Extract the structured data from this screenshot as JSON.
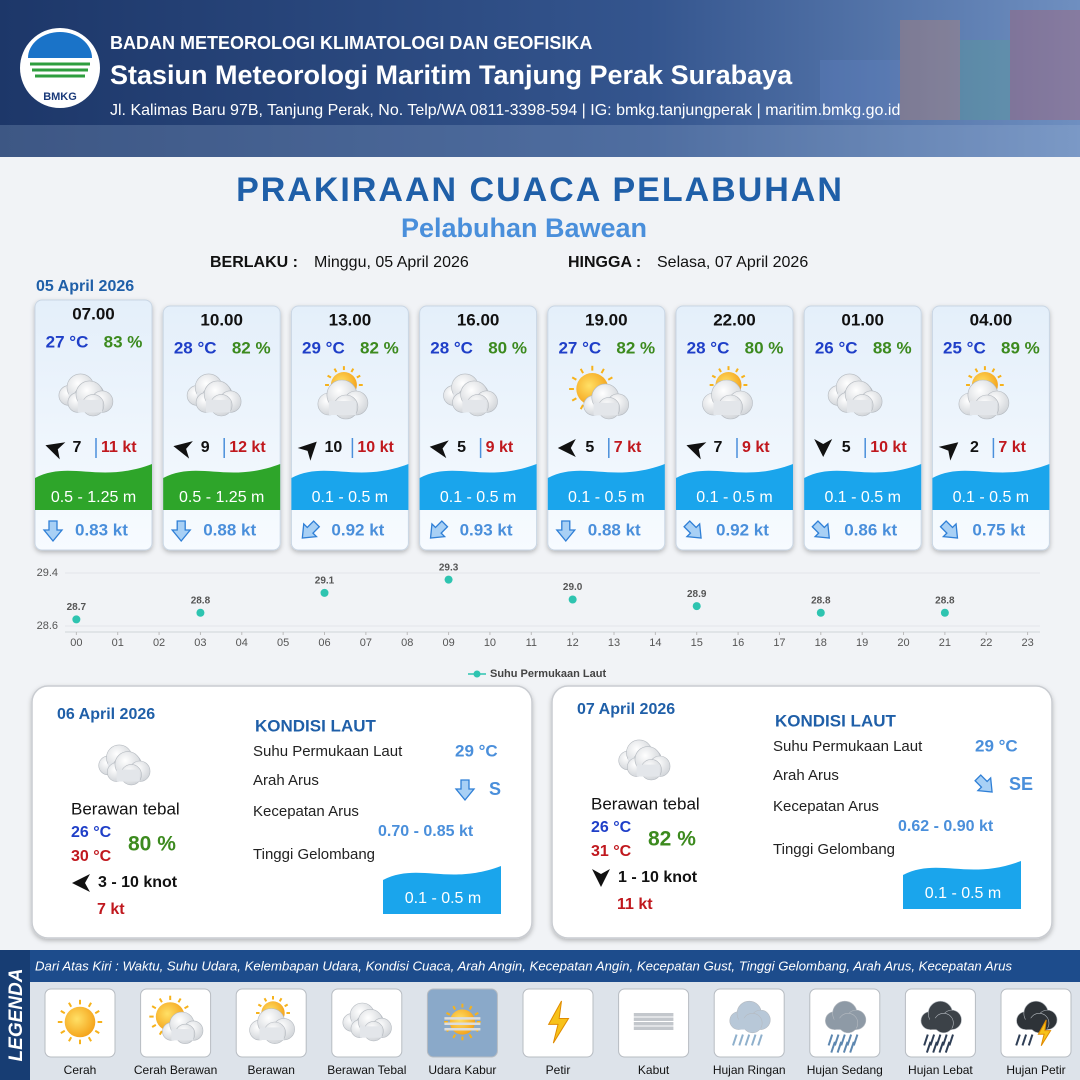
{
  "header": {
    "logo": "BMKG",
    "agency": "BADAN METEOROLOGI KLIMATOLOGI DAN GEOFISIKA",
    "station": "Stasiun Meteorologi Maritim Tanjung Perak Surabaya",
    "address": "Jl. Kalimas Baru 97B, Tanjung Perak, No. Telp/WA 0811-3398-594 | IG: bmkg.tanjungperak | maritim.bmkg.go.id"
  },
  "title": "PRAKIRAAN CUACA PELABUHAN",
  "subtitle": "Pelabuhan Bawean",
  "validity": {
    "from_label": "BERLAKU :",
    "from": "Minggu, 05 April 2026",
    "to_label": "HINGGA :",
    "to": "Selasa, 07 April 2026"
  },
  "day_label": "05 April 2026",
  "forecasts": [
    {
      "time": "07.00",
      "temp": "27 °C",
      "humidity": "83 %",
      "wind": "7",
      "gust": "11 kt",
      "wave": "0.5 - 1.25 m",
      "current": "0.83 kt"
    },
    {
      "time": "10.00",
      "temp": "28 °C",
      "humidity": "82 %",
      "wind": "9",
      "gust": "12 kt",
      "wave": "0.5 - 1.25 m",
      "current": "0.88 kt"
    },
    {
      "time": "13.00",
      "temp": "29 °C",
      "humidity": "82 %",
      "wind": "10",
      "gust": "10 kt",
      "wave": "0.1 - 0.5 m",
      "current": "0.92 kt"
    },
    {
      "time": "16.00",
      "temp": "28 °C",
      "humidity": "80 %",
      "wind": "5",
      "gust": "9 kt",
      "wave": "0.1 - 0.5 m",
      "current": "0.93 kt"
    },
    {
      "time": "19.00",
      "temp": "27 °C",
      "humidity": "82 %",
      "wind": "5",
      "gust": "7 kt",
      "wave": "0.1 - 0.5 m",
      "current": "0.88 kt"
    },
    {
      "time": "22.00",
      "temp": "28 °C",
      "humidity": "80 %",
      "wind": "7",
      "gust": "9 kt",
      "wave": "0.1 - 0.5 m",
      "current": "0.92 kt"
    },
    {
      "time": "01.00",
      "temp": "26 °C",
      "humidity": "88 %",
      "wind": "5",
      "gust": "10 kt",
      "wave": "0.1 - 0.5 m",
      "current": "0.86 kt"
    },
    {
      "time": "04.00",
      "temp": "25 °C",
      "humidity": "89 %",
      "wind": "2",
      "gust": "7 kt",
      "wave": "0.1 - 0.5 m",
      "current": "0.75 kt"
    }
  ],
  "chart_data": {
    "type": "line",
    "series": [
      {
        "name": "Suhu Permukaan Laut",
        "color": "#2ec4b0",
        "x": [
          0,
          3,
          6,
          9,
          12,
          15,
          18,
          21
        ],
        "values": [
          28.7,
          28.8,
          29.1,
          29.3,
          29.0,
          28.9,
          28.8,
          28.8
        ],
        "value_labels": [
          "28.7",
          "28.8",
          "29.1",
          "29.3",
          "29.0",
          "28.9",
          "28.8",
          "28.8"
        ]
      }
    ],
    "xlim": [
      -1,
      23.3
    ],
    "ylim": [
      28.6,
      29.4
    ],
    "yticks": [
      28.6,
      29.4
    ],
    "xticks": [
      {
        "value": 0,
        "label": "00"
      },
      {
        "value": 1,
        "label": "01"
      },
      {
        "value": 2,
        "label": "02"
      },
      {
        "value": 3,
        "label": "03"
      },
      {
        "value": 4,
        "label": "04"
      },
      {
        "value": 5,
        "label": "05"
      },
      {
        "value": 6,
        "label": "06"
      },
      {
        "value": 7,
        "label": "07"
      },
      {
        "value": 8,
        "label": "08"
      },
      {
        "value": 9,
        "label": "09"
      },
      {
        "value": 10,
        "label": "10"
      },
      {
        "value": 11,
        "label": "11"
      },
      {
        "value": 12,
        "label": "12"
      },
      {
        "value": 13,
        "label": "13"
      },
      {
        "value": 14,
        "label": "14"
      },
      {
        "value": 15,
        "label": "15"
      },
      {
        "value": 16,
        "label": "16"
      },
      {
        "value": 17,
        "label": "17"
      },
      {
        "value": 18,
        "label": "18"
      },
      {
        "value": 19,
        "label": "19"
      },
      {
        "value": 20,
        "label": "20"
      },
      {
        "value": 21,
        "label": "21"
      },
      {
        "value": 22,
        "label": "22"
      },
      {
        "value": 23,
        "label": "23"
      }
    ],
    "grid": true,
    "legend": "bottom"
  },
  "days": [
    {
      "date": "06 April 2026",
      "condition": "Berawan tebal",
      "temp_min": "26 °C",
      "temp_max": "30 °C",
      "humidity": "80 %",
      "wind": "3  - 10 knot",
      "gust": "7 kt",
      "sea": {
        "title": "KONDISI LAUT",
        "sst_label": "Suhu Permukaan Laut",
        "sst": "29 °C",
        "dir_label": "Arah Arus",
        "dir": "S",
        "speed_label": "Kecepatan Arus",
        "speed": "0.70  - 0.85 kt",
        "wave_label": "Tinggi Gelombang",
        "wave": "0.1 - 0.5 m"
      }
    },
    {
      "date": "07 April 2026",
      "condition": "Berawan tebal",
      "temp_min": "26 °C",
      "temp_max": "31 °C",
      "humidity": "82 %",
      "wind": "1  - 10 knot",
      "gust": "11 kt",
      "sea": {
        "title": "KONDISI LAUT",
        "sst_label": "Suhu Permukaan Laut",
        "sst": "29 °C",
        "dir_label": "Arah Arus",
        "dir": "SE",
        "speed_label": "Kecepatan Arus",
        "speed": "0.62 - 0.90 kt",
        "wave_label": "Tinggi Gelombang",
        "wave": "0.1 - 0.5 m"
      }
    }
  ],
  "legend": {
    "title": "LEGENDA",
    "description": "Dari Atas Kiri : Waktu, Suhu Udara, Kelembapan Udara, Kondisi Cuaca, Arah Angin, Kecepatan Angin, Kecepatan Gust, Tinggi Gelombang, Arah Arus, Kecepatan Arus",
    "items": [
      "Cerah",
      "Cerah Berawan",
      "Berawan",
      "Berawan Tebal",
      "Udara Kabur",
      "Petir",
      "Kabut",
      "Hujan Ringan",
      "Hujan Sedang",
      "Hujan Lebat",
      "Hujan Petir"
    ]
  }
}
